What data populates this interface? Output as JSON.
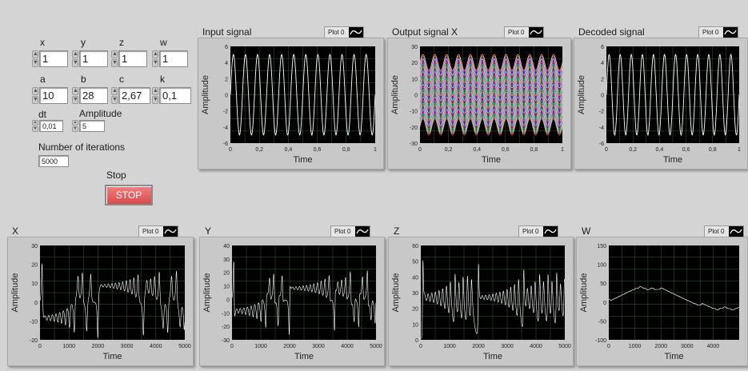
{
  "controls": {
    "x": {
      "label": "x",
      "value": "1"
    },
    "y": {
      "label": "y",
      "value": "1"
    },
    "z": {
      "label": "z",
      "value": "1"
    },
    "w": {
      "label": "w",
      "value": "1"
    },
    "a": {
      "label": "a",
      "value": "10"
    },
    "b": {
      "label": "b",
      "value": "28"
    },
    "c": {
      "label": "c",
      "value": "2,67"
    },
    "k": {
      "label": "k",
      "value": "0,1"
    },
    "dt": {
      "label": "dt",
      "value": "0,01"
    },
    "amplitude": {
      "label": "Amplitude",
      "value": "5"
    },
    "iterations": {
      "label": "Number of iterations",
      "value": "5000"
    },
    "stop": {
      "label": "Stop",
      "button": "STOP",
      "color": "#e05a5a"
    }
  },
  "colors": {
    "plot_bg": "#000000",
    "grid": "#3a5a3a",
    "trace": "#ffffff"
  },
  "charts": [
    {
      "id": "input",
      "title": "Input signal",
      "legend": "Plot 0",
      "ylabel": "Amplitude",
      "xlabel": "Time",
      "chart_data": {
        "type": "line",
        "x_range": [
          0,
          1
        ],
        "y_range": [
          -6,
          6
        ],
        "xticks": [
          "0",
          "0,2",
          "0,4",
          "0,6",
          "0,8",
          "1"
        ],
        "yticks": [
          "6",
          "4",
          "2",
          "0",
          "-2",
          "-4",
          "-6"
        ],
        "series": [
          {
            "kind": "sine",
            "amplitude": 5,
            "cycles": 12
          }
        ]
      }
    },
    {
      "id": "outx",
      "title": "Output signal X",
      "legend": "Plot 0",
      "ylabel": "Amplitude",
      "xlabel": "Time",
      "chart_data": {
        "type": "line",
        "x_range": [
          0,
          1
        ],
        "y_range": [
          -30,
          30
        ],
        "xticks": [
          "0",
          "0,2",
          "0,4",
          "0,6",
          "0,8",
          "1"
        ],
        "yticks": [
          "30",
          "20",
          "10",
          "0",
          "-10",
          "-20",
          "-30"
        ],
        "series": [
          {
            "kind": "multi-sine",
            "amplitude": 5,
            "cycles": 12,
            "offset_range": [
              -20,
              20
            ]
          }
        ]
      }
    },
    {
      "id": "decoded",
      "title": "Decoded signal",
      "legend": "Plot 0",
      "ylabel": "Amplitude",
      "xlabel": "Time",
      "chart_data": {
        "type": "line",
        "x_range": [
          0,
          1
        ],
        "y_range": [
          -6,
          6
        ],
        "xticks": [
          "0",
          "0,2",
          "0,4",
          "0,6",
          "0,8",
          "1"
        ],
        "yticks": [
          "6",
          "4",
          "2",
          "0",
          "-2",
          "-4",
          "-6"
        ],
        "series": [
          {
            "kind": "sine",
            "amplitude": 5,
            "cycles": 12
          }
        ]
      }
    },
    {
      "id": "X",
      "title": "X",
      "legend": "Plot 0",
      "ylabel": "Amplitude",
      "xlabel": "Time",
      "chart_data": {
        "type": "line",
        "x_range": [
          0,
          5000
        ],
        "y_range": [
          -20,
          30
        ],
        "xticks": [
          "0",
          "1000",
          "2000",
          "3000",
          "4000",
          "5000"
        ],
        "yticks": [
          "30",
          "20",
          "10",
          "0",
          "-10",
          "-20"
        ],
        "series": [
          {
            "kind": "lorenz",
            "variable": "x"
          }
        ]
      }
    },
    {
      "id": "Y",
      "title": "Y",
      "legend": "Plot 0",
      "ylabel": "Amplitude",
      "xlabel": "Time",
      "chart_data": {
        "type": "line",
        "x_range": [
          0,
          5000
        ],
        "y_range": [
          -30,
          40
        ],
        "xticks": [
          "0",
          "1000",
          "2000",
          "3000",
          "4000",
          "5000"
        ],
        "yticks": [
          "40",
          "30",
          "20",
          "10",
          "0",
          "-10",
          "-20",
          "-30"
        ],
        "series": [
          {
            "kind": "lorenz",
            "variable": "y"
          }
        ]
      }
    },
    {
      "id": "Z",
      "title": "Z",
      "legend": "Plot 0",
      "ylabel": "Amplitude",
      "xlabel": "Time",
      "chart_data": {
        "type": "line",
        "x_range": [
          0,
          5000
        ],
        "y_range": [
          0,
          60
        ],
        "xticks": [
          "0",
          "1000",
          "2000",
          "3000",
          "4000",
          "5000"
        ],
        "yticks": [
          "60",
          "50",
          "40",
          "30",
          "20",
          "10",
          "0"
        ],
        "series": [
          {
            "kind": "lorenz",
            "variable": "z"
          }
        ]
      }
    },
    {
      "id": "W",
      "title": "W",
      "legend": "Plot 0",
      "ylabel": "Amplitude",
      "xlabel": "Time",
      "chart_data": {
        "type": "line",
        "x_range": [
          0,
          5000
        ],
        "y_range": [
          -100,
          150
        ],
        "xticks": [
          "0",
          "1000",
          "2000",
          "3000",
          "4000"
        ],
        "yticks": [
          "150",
          "100",
          "50",
          "0",
          "-50",
          "-100"
        ],
        "series": [
          {
            "kind": "lorenz",
            "variable": "w"
          }
        ]
      }
    }
  ]
}
